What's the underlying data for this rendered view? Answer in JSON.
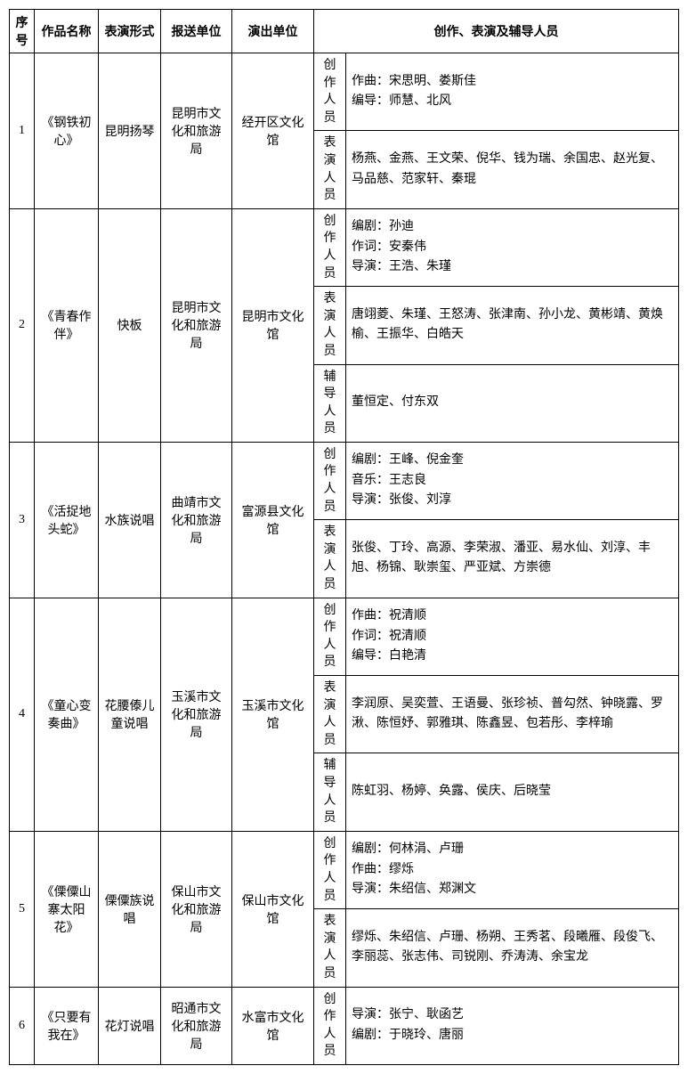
{
  "headers": {
    "seq": "序号",
    "name": "作品名称",
    "form": "表演形式",
    "submit": "报送单位",
    "perform": "演出单位",
    "staff": "创作、表演及辅导人员"
  },
  "role_labels": {
    "create": "创作人员",
    "perform": "表演人员",
    "coach": "辅导人员"
  },
  "rows": [
    {
      "seq": "1",
      "name": "《钢铁初心》",
      "form": "昆明扬琴",
      "submit": "昆明市文化和旅游局",
      "perform": "经开区文化馆",
      "staff": [
        {
          "role": "create",
          "text": "作曲：宋思明、娄斯佳\n编导：师慧、北风"
        },
        {
          "role": "perform",
          "text": "杨燕、金燕、王文荣、倪华、钱为瑞、余国忠、赵光复、马品慈、范家轩、秦琨"
        }
      ]
    },
    {
      "seq": "2",
      "name": "《青春作伴》",
      "form": "快板",
      "submit": "昆明市文化和旅游局",
      "perform": "昆明市文化馆",
      "staff": [
        {
          "role": "create",
          "text": "编剧：孙迪\n作词：安秦伟\n导演：王浩、朱瑾"
        },
        {
          "role": "perform",
          "text": "唐翊菱、朱瑾、王怒涛、张津南、孙小龙、黄彬靖、黄焕榆、王振华、白皓天"
        },
        {
          "role": "coach",
          "text": "董恒定、付东双"
        }
      ]
    },
    {
      "seq": "3",
      "name": "《活捉地头蛇》",
      "form": "水族说唱",
      "submit": "曲靖市文化和旅游局",
      "perform": "富源县文化馆",
      "staff": [
        {
          "role": "create",
          "text": "编剧：王峰、倪金奎\n音乐：王志良\n导演：张俊、刘淳"
        },
        {
          "role": "perform",
          "text": "张俊、丁玲、高源、李荣淑、潘亚、易水仙、刘淳、丰旭、杨锦、耿崇玺、严亚斌、方崇德"
        }
      ]
    },
    {
      "seq": "4",
      "name": "《童心变奏曲》",
      "form": "花腰傣儿童说唱",
      "submit": "玉溪市文化和旅游局",
      "perform": "玉溪市文化馆",
      "staff": [
        {
          "role": "create",
          "text": "作曲：祝清顺\n作词：祝清顺\n编导：白艳清"
        },
        {
          "role": "perform",
          "text": "李润原、吴奕萱、王语曼、张珍祯、普勾然、钟晓露、罗湫、陈恒妤、郭雅琪、陈鑫昱、包若彤、李梓瑜"
        },
        {
          "role": "coach",
          "text": "陈虹羽、杨婷、奂露、侯庆、后晓莹"
        }
      ]
    },
    {
      "seq": "5",
      "name": "《傈僳山寨太阳花》",
      "form": "傈僳族说唱",
      "submit": "保山市文化和旅游局",
      "perform": "保山市文化馆",
      "staff": [
        {
          "role": "create",
          "text": "编剧：何林涓、卢珊\n作曲：缪烁\n导演：朱绍信、郑渊文"
        },
        {
          "role": "perform",
          "text": "缪烁、朱绍信、卢珊、杨朔、王秀茗、段曦雁、段俊飞、李丽蕊、张志伟、司锐刚、乔涛涛、余宝龙"
        }
      ]
    },
    {
      "seq": "6",
      "name": "《只要有我在》",
      "form": "花灯说唱",
      "submit": "昭通市文化和旅游局",
      "perform": "水富市文化馆",
      "staff": [
        {
          "role": "create",
          "text": "导演：张宁、耿函艺\n编剧：于晓玲、唐丽"
        }
      ]
    }
  ]
}
